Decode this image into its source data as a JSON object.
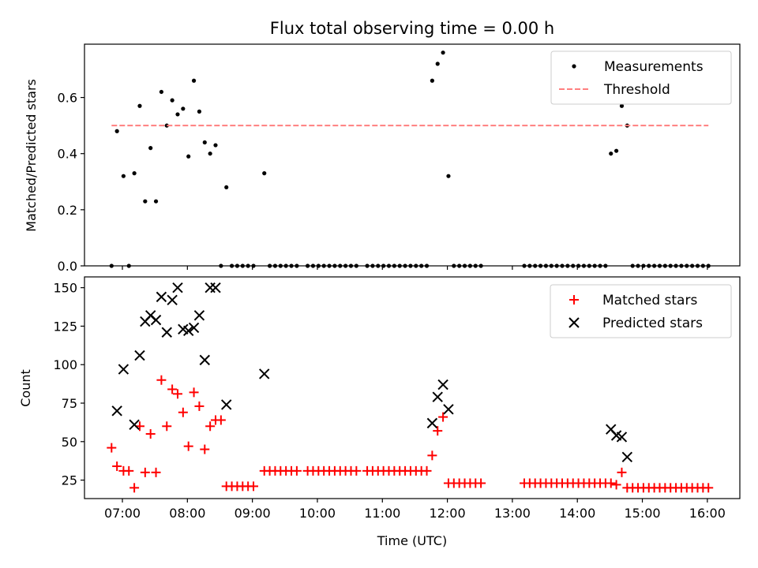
{
  "chart_data": [
    {
      "type": "scatter",
      "title": "Flux total observing time = 0.00 h",
      "xlabel": "",
      "ylabel": "Matched/Predicted stars",
      "x_is_time": true,
      "xlim": [
        "06:25",
        "16:30"
      ],
      "ylim": [
        0,
        0.79
      ],
      "yticks": [
        "0.0",
        "0.2",
        "0.4",
        "0.6"
      ],
      "grid": false,
      "legend_position": "top-right",
      "series": [
        {
          "name": "Measurements",
          "marker": "dot",
          "color": "#000000",
          "points": [
            [
              "06:50",
              0.0
            ],
            [
              "06:55",
              0.48
            ],
            [
              "07:01",
              0.32
            ],
            [
              "07:06",
              0.0
            ],
            [
              "07:11",
              0.33
            ],
            [
              "07:16",
              0.57
            ],
            [
              "07:21",
              0.23
            ],
            [
              "07:26",
              0.42
            ],
            [
              "07:31",
              0.23
            ],
            [
              "07:36",
              0.62
            ],
            [
              "07:41",
              0.5
            ],
            [
              "07:46",
              0.59
            ],
            [
              "07:51",
              0.54
            ],
            [
              "07:56",
              0.56
            ],
            [
              "08:01",
              0.39
            ],
            [
              "08:06",
              0.66
            ],
            [
              "08:11",
              0.55
            ],
            [
              "08:16",
              0.44
            ],
            [
              "08:21",
              0.4
            ],
            [
              "08:26",
              0.43
            ],
            [
              "08:31",
              0.0
            ],
            [
              "08:36",
              0.28
            ],
            [
              "08:41",
              0.0
            ],
            [
              "08:46",
              0.0
            ],
            [
              "08:51",
              0.0
            ],
            [
              "08:56",
              0.0
            ],
            [
              "09:01",
              0.0
            ],
            [
              "09:11",
              0.33
            ],
            [
              "09:16",
              0.0
            ],
            [
              "09:21",
              0.0
            ],
            [
              "09:26",
              0.0
            ],
            [
              "09:31",
              0.0
            ],
            [
              "09:36",
              0.0
            ],
            [
              "09:41",
              0.0
            ],
            [
              "09:51",
              0.0
            ],
            [
              "09:56",
              0.0
            ],
            [
              "10:01",
              0.0
            ],
            [
              "10:06",
              0.0
            ],
            [
              "10:11",
              0.0
            ],
            [
              "10:16",
              0.0
            ],
            [
              "10:21",
              0.0
            ],
            [
              "10:26",
              0.0
            ],
            [
              "10:31",
              0.0
            ],
            [
              "10:36",
              0.0
            ],
            [
              "10:46",
              0.0
            ],
            [
              "10:51",
              0.0
            ],
            [
              "10:56",
              0.0
            ],
            [
              "11:01",
              0.0
            ],
            [
              "11:06",
              0.0
            ],
            [
              "11:11",
              0.0
            ],
            [
              "11:16",
              0.0
            ],
            [
              "11:21",
              0.0
            ],
            [
              "11:26",
              0.0
            ],
            [
              "11:31",
              0.0
            ],
            [
              "11:36",
              0.0
            ],
            [
              "11:41",
              0.0
            ],
            [
              "11:46",
              0.66
            ],
            [
              "11:51",
              0.72
            ],
            [
              "11:56",
              0.76
            ],
            [
              "12:01",
              0.32
            ],
            [
              "12:06",
              0.0
            ],
            [
              "12:11",
              0.0
            ],
            [
              "12:16",
              0.0
            ],
            [
              "12:21",
              0.0
            ],
            [
              "12:26",
              0.0
            ],
            [
              "12:31",
              0.0
            ],
            [
              "13:11",
              0.0
            ],
            [
              "13:16",
              0.0
            ],
            [
              "13:21",
              0.0
            ],
            [
              "13:26",
              0.0
            ],
            [
              "13:31",
              0.0
            ],
            [
              "13:36",
              0.0
            ],
            [
              "13:41",
              0.0
            ],
            [
              "13:46",
              0.0
            ],
            [
              "13:51",
              0.0
            ],
            [
              "13:56",
              0.0
            ],
            [
              "14:01",
              0.0
            ],
            [
              "14:06",
              0.0
            ],
            [
              "14:11",
              0.0
            ],
            [
              "14:16",
              0.0
            ],
            [
              "14:21",
              0.0
            ],
            [
              "14:26",
              0.0
            ],
            [
              "14:31",
              0.4
            ],
            [
              "14:36",
              0.41
            ],
            [
              "14:41",
              0.57
            ],
            [
              "14:46",
              0.5
            ],
            [
              "14:51",
              0.0
            ],
            [
              "14:56",
              0.0
            ],
            [
              "15:01",
              0.0
            ],
            [
              "15:06",
              0.0
            ],
            [
              "15:11",
              0.0
            ],
            [
              "15:16",
              0.0
            ],
            [
              "15:21",
              0.0
            ],
            [
              "15:26",
              0.0
            ],
            [
              "15:31",
              0.0
            ],
            [
              "15:36",
              0.0
            ],
            [
              "15:41",
              0.0
            ],
            [
              "15:46",
              0.0
            ],
            [
              "15:51",
              0.0
            ],
            [
              "15:56",
              0.0
            ],
            [
              "16:01",
              0.0
            ]
          ]
        },
        {
          "name": "Threshold",
          "line_style": "dashed",
          "color": "#ff7f7f",
          "points": [
            [
              "06:50",
              0.5
            ],
            [
              "16:01",
              0.5
            ]
          ]
        }
      ]
    },
    {
      "type": "scatter",
      "title": "",
      "xlabel": "Time (UTC)",
      "ylabel": "Count",
      "x_is_time": true,
      "xlim": [
        "06:25",
        "16:30"
      ],
      "ylim": [
        13,
        157
      ],
      "yticks": [
        "25",
        "50",
        "75",
        "100",
        "125",
        "150"
      ],
      "xticks": [
        "07:00",
        "08:00",
        "09:00",
        "10:00",
        "11:00",
        "12:00",
        "13:00",
        "14:00",
        "15:00",
        "16:00"
      ],
      "grid": false,
      "legend_position": "top-right",
      "series": [
        {
          "name": "Matched stars",
          "marker": "plus",
          "color": "#ff0000",
          "points": [
            [
              "06:50",
              46
            ],
            [
              "06:55",
              34
            ],
            [
              "07:01",
              31
            ],
            [
              "07:06",
              31
            ],
            [
              "07:11",
              20
            ],
            [
              "07:16",
              60
            ],
            [
              "07:21",
              30
            ],
            [
              "07:26",
              55
            ],
            [
              "07:31",
              30
            ],
            [
              "07:36",
              90
            ],
            [
              "07:41",
              60
            ],
            [
              "07:46",
              84
            ],
            [
              "07:51",
              81
            ],
            [
              "07:56",
              69
            ],
            [
              "08:01",
              47
            ],
            [
              "08:06",
              82
            ],
            [
              "08:11",
              73
            ],
            [
              "08:16",
              45
            ],
            [
              "08:21",
              60
            ],
            [
              "08:26",
              64
            ],
            [
              "08:31",
              64
            ],
            [
              "08:36",
              21
            ],
            [
              "08:41",
              21
            ],
            [
              "08:46",
              21
            ],
            [
              "08:51",
              21
            ],
            [
              "08:56",
              21
            ],
            [
              "09:01",
              21
            ],
            [
              "09:11",
              31
            ],
            [
              "09:16",
              31
            ],
            [
              "09:21",
              31
            ],
            [
              "09:26",
              31
            ],
            [
              "09:31",
              31
            ],
            [
              "09:36",
              31
            ],
            [
              "09:41",
              31
            ],
            [
              "09:51",
              31
            ],
            [
              "09:56",
              31
            ],
            [
              "10:01",
              31
            ],
            [
              "10:06",
              31
            ],
            [
              "10:11",
              31
            ],
            [
              "10:16",
              31
            ],
            [
              "10:21",
              31
            ],
            [
              "10:26",
              31
            ],
            [
              "10:31",
              31
            ],
            [
              "10:36",
              31
            ],
            [
              "10:46",
              31
            ],
            [
              "10:51",
              31
            ],
            [
              "10:56",
              31
            ],
            [
              "11:01",
              31
            ],
            [
              "11:06",
              31
            ],
            [
              "11:11",
              31
            ],
            [
              "11:16",
              31
            ],
            [
              "11:21",
              31
            ],
            [
              "11:26",
              31
            ],
            [
              "11:31",
              31
            ],
            [
              "11:36",
              31
            ],
            [
              "11:41",
              31
            ],
            [
              "11:46",
              41
            ],
            [
              "11:51",
              57
            ],
            [
              "11:56",
              66
            ],
            [
              "12:01",
              23
            ],
            [
              "12:06",
              23
            ],
            [
              "12:11",
              23
            ],
            [
              "12:16",
              23
            ],
            [
              "12:21",
              23
            ],
            [
              "12:26",
              23
            ],
            [
              "12:31",
              23
            ],
            [
              "13:11",
              23
            ],
            [
              "13:16",
              23
            ],
            [
              "13:21",
              23
            ],
            [
              "13:26",
              23
            ],
            [
              "13:31",
              23
            ],
            [
              "13:36",
              23
            ],
            [
              "13:41",
              23
            ],
            [
              "13:46",
              23
            ],
            [
              "13:51",
              23
            ],
            [
              "13:56",
              23
            ],
            [
              "14:01",
              23
            ],
            [
              "14:06",
              23
            ],
            [
              "14:11",
              23
            ],
            [
              "14:16",
              23
            ],
            [
              "14:21",
              23
            ],
            [
              "14:26",
              23
            ],
            [
              "14:31",
              23
            ],
            [
              "14:36",
              22
            ],
            [
              "14:41",
              30
            ],
            [
              "14:46",
              20
            ],
            [
              "14:51",
              20
            ],
            [
              "14:56",
              20
            ],
            [
              "15:01",
              20
            ],
            [
              "15:06",
              20
            ],
            [
              "15:11",
              20
            ],
            [
              "15:16",
              20
            ],
            [
              "15:21",
              20
            ],
            [
              "15:26",
              20
            ],
            [
              "15:31",
              20
            ],
            [
              "15:36",
              20
            ],
            [
              "15:41",
              20
            ],
            [
              "15:46",
              20
            ],
            [
              "15:51",
              20
            ],
            [
              "15:56",
              20
            ],
            [
              "16:01",
              20
            ]
          ]
        },
        {
          "name": "Predicted stars",
          "marker": "x",
          "color": "#000000",
          "points": [
            [
              "06:55",
              70
            ],
            [
              "07:01",
              97
            ],
            [
              "07:11",
              61
            ],
            [
              "07:16",
              106
            ],
            [
              "07:21",
              128
            ],
            [
              "07:26",
              132
            ],
            [
              "07:31",
              129
            ],
            [
              "07:36",
              144
            ],
            [
              "07:41",
              121
            ],
            [
              "07:46",
              142
            ],
            [
              "07:51",
              150
            ],
            [
              "07:56",
              123
            ],
            [
              "08:01",
              122
            ],
            [
              "08:06",
              124
            ],
            [
              "08:11",
              132
            ],
            [
              "08:16",
              103
            ],
            [
              "08:21",
              150
            ],
            [
              "08:26",
              150
            ],
            [
              "08:36",
              74
            ],
            [
              "09:11",
              94
            ],
            [
              "11:46",
              62
            ],
            [
              "11:51",
              79
            ],
            [
              "11:56",
              87
            ],
            [
              "12:01",
              71
            ],
            [
              "14:31",
              58
            ],
            [
              "14:36",
              54
            ],
            [
              "14:41",
              53
            ],
            [
              "14:46",
              40
            ]
          ]
        }
      ]
    }
  ]
}
